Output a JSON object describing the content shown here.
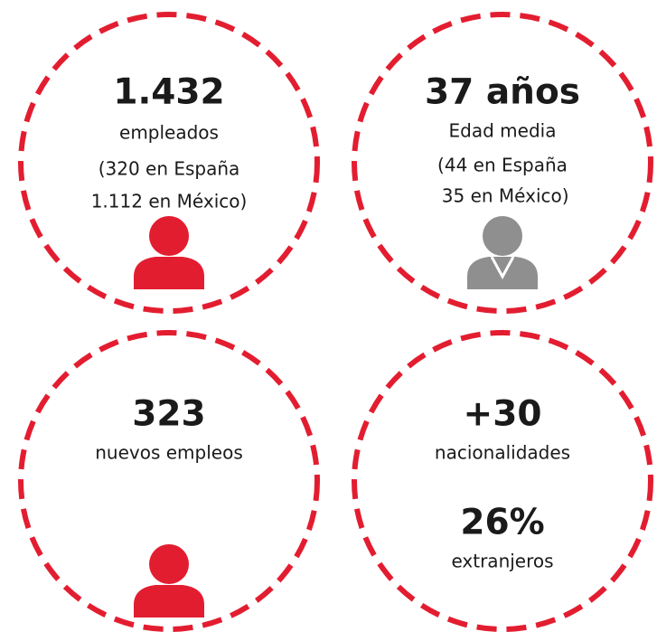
{
  "items": [
    {
      "headline": "1.432",
      "lines": [
        "empleados",
        "(320 en España",
        "1.112 en México)"
      ]
    },
    {
      "headline": "37 años",
      "lines": [
        "Edad media",
        "(44 en España",
        " 35 en México)"
      ]
    },
    {
      "headline": "323",
      "lines": [
        "nuevos empleos"
      ]
    },
    {
      "headline": "+30",
      "lines": [
        "nacionalidades"
      ],
      "headline2": "26%",
      "lines2": [
        "extranjeros"
      ]
    }
  ]
}
